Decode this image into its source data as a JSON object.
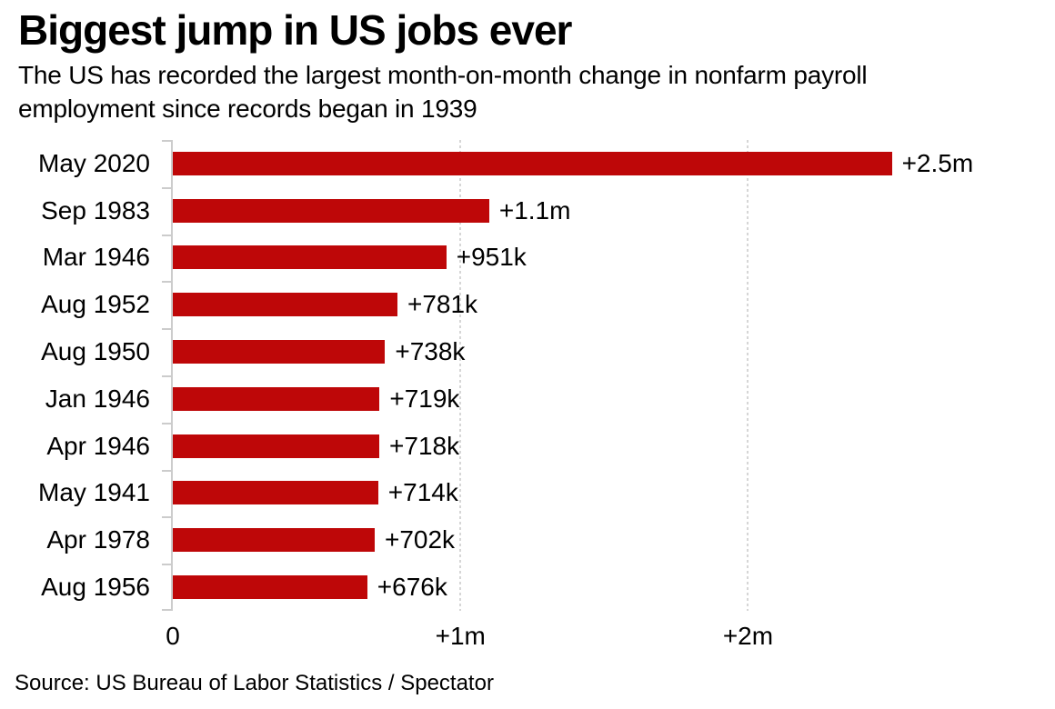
{
  "title": "Biggest jump in US jobs ever",
  "subtitle": {
    "line1": "The US has recorded the largest month-on-month change in nonfarm payroll",
    "line2": "employment since records began in 1939"
  },
  "source": "Source: US Bureau of Labor Statistics / Spectator",
  "colors": {
    "bar": "#be0708",
    "axis": "#cccccc",
    "gridline": "#d6d6d6",
    "text": "#000000",
    "background": "#ffffff"
  },
  "chart_data": {
    "type": "bar",
    "orientation": "horizontal",
    "title": "Biggest jump in US jobs ever",
    "subtitle": "The US has recorded the largest month-on-month change in nonfarm payroll employment since records began in 1939",
    "categories": [
      "May 2020",
      "Sep 1983",
      "Mar 1946",
      "Aug 1952",
      "Aug 1950",
      "Jan 1946",
      "Apr 1946",
      "May 1941",
      "Apr 1978",
      "Aug 1956"
    ],
    "values_millions": [
      2.5,
      1.1,
      0.951,
      0.781,
      0.738,
      0.719,
      0.718,
      0.714,
      0.702,
      0.676
    ],
    "value_labels": [
      "+2.5m",
      "+1.1m",
      "+951k",
      "+781k",
      "+738k",
      "+719k",
      "+718k",
      "+714k",
      "+702k",
      "+676k"
    ],
    "xlabel": "",
    "ylabel": "",
    "xlim": [
      0,
      3.02
    ],
    "x_ticks": [
      {
        "label": "0",
        "value": 0
      },
      {
        "label": "+1m",
        "value": 1
      },
      {
        "label": "+2m",
        "value": 2
      }
    ],
    "grid": "dotted-vertical-at-x-ticks",
    "legend": "none",
    "value_labels_position": "end-of-bar"
  }
}
